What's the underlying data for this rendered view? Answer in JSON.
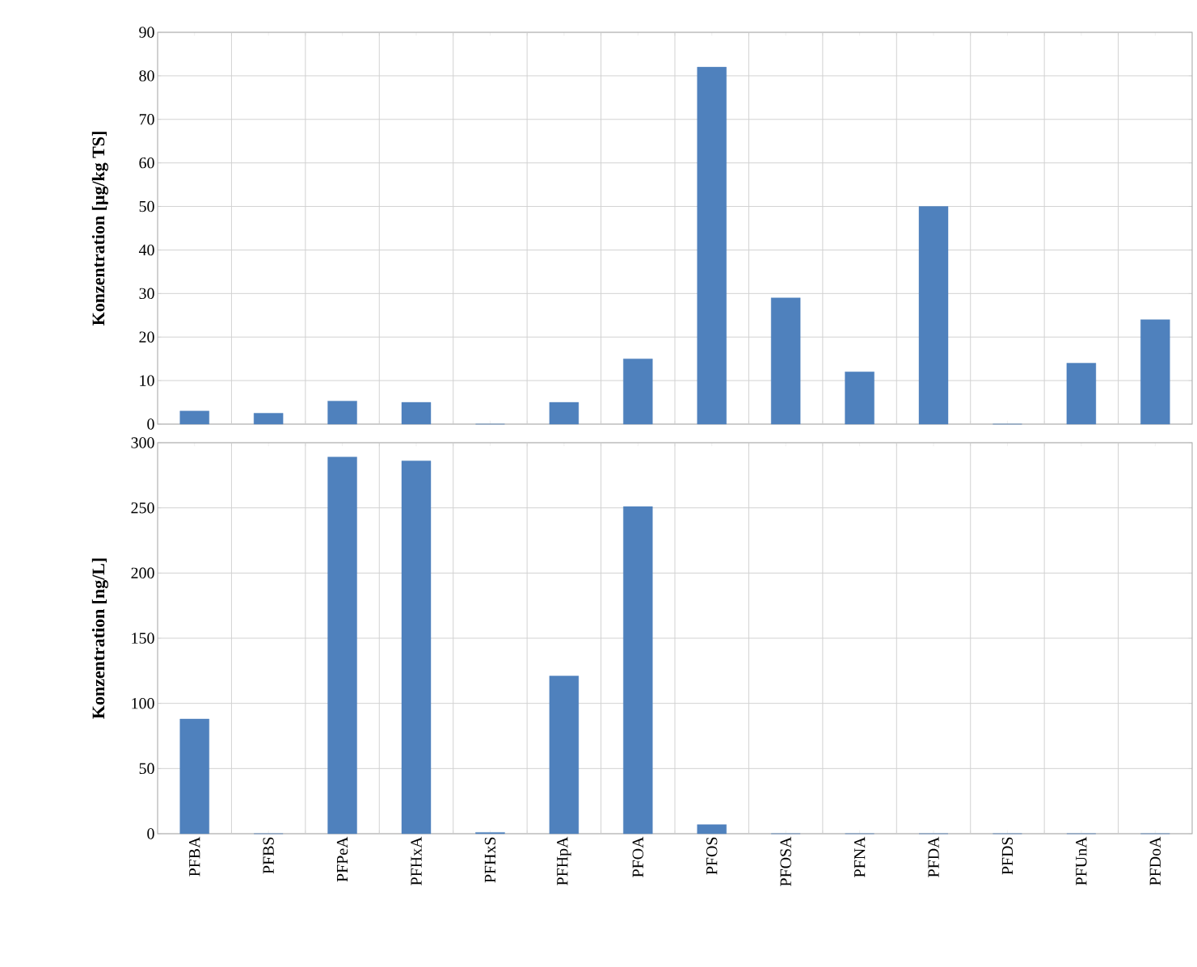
{
  "chart_data": [
    {
      "type": "bar",
      "ylabel": "Konzentration [µg/kg TS]",
      "categories": [
        null,
        null,
        null,
        null,
        null,
        null,
        null,
        null,
        null,
        null,
        null,
        null,
        null,
        null
      ],
      "values": [
        3,
        2.5,
        5.3,
        5,
        0,
        5,
        15,
        82,
        29,
        12,
        50,
        0,
        14,
        24
      ],
      "color": "#4f81bd",
      "ylim": [
        0,
        90
      ],
      "yticks": [
        0,
        10,
        20,
        30,
        40,
        50,
        60,
        70,
        80,
        90
      ],
      "grid": true,
      "tick_labels": "y"
    },
    {
      "type": "bar",
      "ylabel": "Konzentration [ng/L]",
      "categories": [
        "PFBA",
        "PFBS",
        "PFPeA",
        "PFHxA",
        "PFHxS",
        "PFHpA",
        "PFOA",
        "PFOS",
        "PFOSA",
        "PFNA",
        "PFDA",
        "PFDS",
        "PFUnA",
        "PFDoA"
      ],
      "values": [
        88,
        0,
        289,
        286,
        1,
        121,
        251,
        7,
        0,
        0,
        0,
        0,
        0,
        0
      ],
      "color": "#4f81bd",
      "ylim": [
        0,
        300
      ],
      "yticks": [
        0,
        50,
        100,
        150,
        200,
        250,
        300
      ],
      "grid": true
    }
  ]
}
